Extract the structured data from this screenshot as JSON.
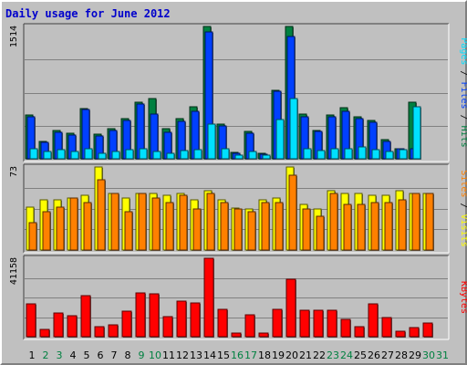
{
  "title": "Daily usage for June 2012",
  "colors": {
    "pages": "#00e0ff",
    "files": "#0040ff",
    "hits": "#008040",
    "visits": "#ffff00",
    "sites": "#ff8000",
    "kbytes": "#ff0000",
    "weekday_label": "#000000",
    "weekend_label": "#008040",
    "separator": "#000000"
  },
  "panel_labels": {
    "top": [
      "Pages",
      "Files",
      "Hits"
    ],
    "middle": [
      "Sites",
      "Visits"
    ],
    "bottom": [
      "KBytes"
    ]
  },
  "chart_data": [
    {
      "type": "bar",
      "name": "Hits / Files / Pages",
      "ymax_label": "1514",
      "ylim": [
        0,
        1514
      ],
      "categories": [
        "1",
        "2",
        "3",
        "4",
        "5",
        "6",
        "7",
        "8",
        "9",
        "10",
        "11",
        "12",
        "13",
        "14",
        "15",
        "16",
        "17",
        "18",
        "19",
        "20",
        "21",
        "22",
        "23",
        "24",
        "25",
        "26",
        "27",
        "28",
        "29",
        "30",
        "31"
      ],
      "series": [
        {
          "name": "Hits",
          "values": [
            500,
            200,
            320,
            290,
            570,
            280,
            340,
            460,
            650,
            690,
            340,
            460,
            590,
            1514,
            400,
            70,
            310,
            60,
            780,
            1514,
            510,
            320,
            500,
            580,
            480,
            440,
            220,
            120,
            650,
            0,
            0
          ]
        },
        {
          "name": "Files",
          "values": [
            480,
            190,
            300,
            270,
            560,
            260,
            320,
            440,
            630,
            510,
            300,
            430,
            540,
            1450,
            380,
            60,
            290,
            50,
            770,
            1400,
            480,
            310,
            480,
            540,
            460,
            420,
            200,
            110,
            120,
            0,
            0
          ]
        },
        {
          "name": "Pages",
          "values": [
            120,
            80,
            100,
            80,
            110,
            60,
            80,
            100,
            110,
            80,
            60,
            90,
            100,
            400,
            120,
            40,
            80,
            40,
            450,
            690,
            110,
            90,
            120,
            120,
            140,
            100,
            80,
            100,
            590,
            0,
            0
          ]
        }
      ]
    },
    {
      "type": "bar",
      "name": "Visits / Sites",
      "ymax_label": "73",
      "ylim": [
        0,
        73
      ],
      "categories": [
        "1",
        "2",
        "3",
        "4",
        "5",
        "6",
        "7",
        "8",
        "9",
        "10",
        "11",
        "12",
        "13",
        "14",
        "15",
        "16",
        "17",
        "18",
        "19",
        "20",
        "21",
        "22",
        "23",
        "24",
        "25",
        "26",
        "27",
        "28",
        "29",
        "30",
        "31"
      ],
      "series": [
        {
          "name": "Visits",
          "values": [
            38,
            44,
            44,
            46,
            48,
            73,
            50,
            46,
            50,
            50,
            48,
            50,
            44,
            52,
            44,
            37,
            36,
            44,
            46,
            73,
            40,
            36,
            52,
            50,
            50,
            48,
            48,
            52,
            50,
            50,
            0
          ]
        },
        {
          "name": "Sites",
          "values": [
            24,
            34,
            38,
            46,
            42,
            62,
            50,
            34,
            50,
            46,
            42,
            48,
            36,
            50,
            42,
            36,
            34,
            42,
            42,
            66,
            36,
            30,
            50,
            40,
            40,
            42,
            42,
            44,
            50,
            50,
            0
          ]
        }
      ]
    },
    {
      "type": "bar",
      "name": "KBytes",
      "ymax_label": "41158",
      "ylim": [
        0,
        41158
      ],
      "categories": [
        "1",
        "2",
        "3",
        "4",
        "5",
        "6",
        "7",
        "8",
        "9",
        "10",
        "11",
        "12",
        "13",
        "14",
        "15",
        "16",
        "17",
        "18",
        "19",
        "20",
        "21",
        "22",
        "23",
        "24",
        "25",
        "26",
        "27",
        "28",
        "29",
        "30",
        "31"
      ],
      "series": [
        {
          "name": "KBytes",
          "values": [
            17000,
            4000,
            12500,
            11000,
            21500,
            5500,
            6000,
            13500,
            23000,
            22500,
            10300,
            18600,
            17700,
            41158,
            14300,
            2100,
            11600,
            2100,
            14300,
            30100,
            14100,
            14000,
            14000,
            9000,
            5500,
            17300,
            10000,
            3000,
            5000,
            7000,
            0
          ]
        }
      ]
    }
  ],
  "x_labels": [
    {
      "text": "1",
      "weekend": false
    },
    {
      "text": "2",
      "weekend": true
    },
    {
      "text": "3",
      "weekend": true
    },
    {
      "text": "4",
      "weekend": false
    },
    {
      "text": "5",
      "weekend": false
    },
    {
      "text": "6",
      "weekend": false
    },
    {
      "text": "7",
      "weekend": false
    },
    {
      "text": "8",
      "weekend": false
    },
    {
      "text": "9",
      "weekend": true
    },
    {
      "text": "10",
      "weekend": true
    },
    {
      "text": "11",
      "weekend": false
    },
    {
      "text": "12",
      "weekend": false
    },
    {
      "text": "13",
      "weekend": false
    },
    {
      "text": "14",
      "weekend": false
    },
    {
      "text": "15",
      "weekend": false
    },
    {
      "text": "16",
      "weekend": true
    },
    {
      "text": "17",
      "weekend": true
    },
    {
      "text": "18",
      "weekend": false
    },
    {
      "text": "19",
      "weekend": false
    },
    {
      "text": "20",
      "weekend": false
    },
    {
      "text": "21",
      "weekend": false
    },
    {
      "text": "22",
      "weekend": false
    },
    {
      "text": "23",
      "weekend": true
    },
    {
      "text": "24",
      "weekend": true
    },
    {
      "text": "25",
      "weekend": false
    },
    {
      "text": "26",
      "weekend": false
    },
    {
      "text": "27",
      "weekend": false
    },
    {
      "text": "28",
      "weekend": false
    },
    {
      "text": "29",
      "weekend": false
    },
    {
      "text": "30",
      "weekend": true
    },
    {
      "text": "31",
      "weekend": true
    }
  ]
}
